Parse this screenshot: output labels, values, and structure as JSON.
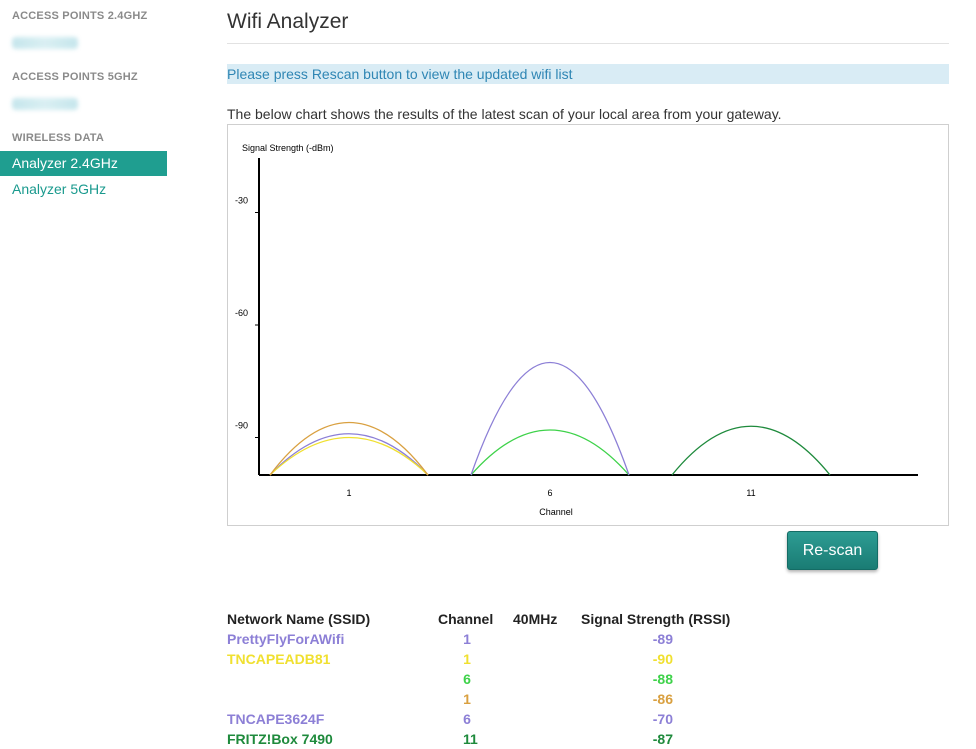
{
  "sidebar": {
    "sections": [
      {
        "heading": "ACCESS POINTS 2.4GHZ"
      },
      {
        "heading": "ACCESS POINTS 5GHZ"
      },
      {
        "heading": "WIRELESS DATA"
      }
    ],
    "items": [
      {
        "label": "Analyzer 2.4GHz",
        "active": true
      },
      {
        "label": "Analyzer 5GHz",
        "active": false
      }
    ]
  },
  "main": {
    "title": "Wifi Analyzer",
    "notice": "Please press Rescan button to view the updated wifi list",
    "description": "The below chart shows the results of the latest scan of your local area from your gateway.",
    "rescan_label": "Re-scan"
  },
  "chart_data": {
    "type": "area",
    "ylabel": "Signal Strength (-dBm)",
    "xlabel": "Channel",
    "x_ticks": [
      1,
      6,
      11
    ],
    "y_ticks": [
      -30,
      -60,
      -90
    ],
    "series": [
      {
        "channel": 1,
        "rssi": -89,
        "color": "#8c7fd6"
      },
      {
        "channel": 1,
        "rssi": -90,
        "color": "#f0e030"
      },
      {
        "channel": 6,
        "rssi": -88,
        "color": "#3ed24a"
      },
      {
        "channel": 1,
        "rssi": -86,
        "color": "#d9a040"
      },
      {
        "channel": 6,
        "rssi": -70,
        "color": "#8c7fd6"
      },
      {
        "channel": 11,
        "rssi": -87,
        "color": "#1e8a3c"
      }
    ]
  },
  "table": {
    "headers": [
      "Network Name (SSID)",
      "Channel",
      "40MHz",
      "Signal Strength (RSSI)"
    ],
    "rows": [
      {
        "ssid": "PrettyFlyForAWifi",
        "channel": "1",
        "mhz40": "",
        "rssi": "-89",
        "color": "#8c7fd6"
      },
      {
        "ssid": "TNCAPEADB81",
        "channel": "1",
        "mhz40": "",
        "rssi": "-90",
        "color": "#f0e030"
      },
      {
        "ssid": "",
        "channel": "6",
        "mhz40": "",
        "rssi": "-88",
        "color": "#3ed24a"
      },
      {
        "ssid": "",
        "channel": "1",
        "mhz40": "",
        "rssi": "-86",
        "color": "#d9a040"
      },
      {
        "ssid": "TNCAPE3624F",
        "channel": "6",
        "mhz40": "",
        "rssi": "-70",
        "color": "#8c7fd6"
      },
      {
        "ssid": "FRITZ!Box 7490",
        "channel": "11",
        "mhz40": "",
        "rssi": "-87",
        "color": "#1e8a3c"
      }
    ]
  }
}
